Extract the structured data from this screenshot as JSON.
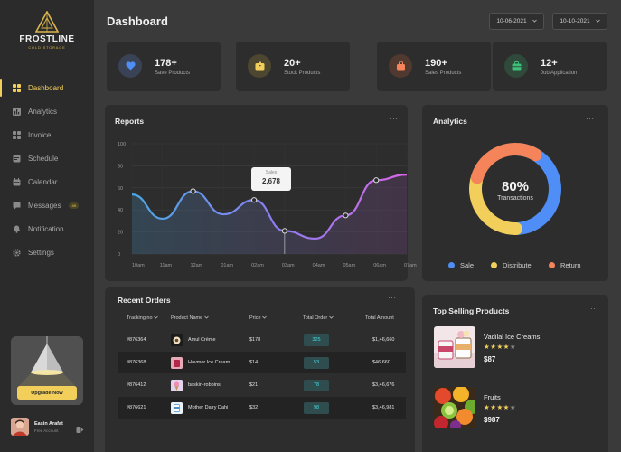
{
  "brand": {
    "name": "FROSTLINE",
    "tagline": "COLD STORAGE",
    "accent": "#f2cf5b"
  },
  "nav": [
    {
      "label": "Dashboard",
      "icon": "dashboard-icon",
      "active": true
    },
    {
      "label": "Analytics",
      "icon": "analytics-icon"
    },
    {
      "label": "Invoice",
      "icon": "invoice-icon"
    },
    {
      "label": "Schedule",
      "icon": "schedule-icon"
    },
    {
      "label": "Calendar",
      "icon": "calendar-icon"
    },
    {
      "label": "Messages",
      "icon": "messages-icon",
      "badge": "49"
    },
    {
      "label": "Notification",
      "icon": "notification-icon"
    },
    {
      "label": "Settings",
      "icon": "settings-icon"
    }
  ],
  "upgrade": {
    "label": "Upgrade Now"
  },
  "user": {
    "name": "Easin Arafat",
    "role": "Free Account"
  },
  "header": {
    "title": "Dashboard",
    "date_from": "10-06-2021",
    "date_to": "10-10-2021"
  },
  "stats": [
    {
      "value": "178+",
      "label": "Save Products",
      "icon": "heart-icon",
      "color": "#4f8ef7"
    },
    {
      "value": "20+",
      "label": "Stock Products",
      "icon": "box-icon",
      "color": "#f2cf5b"
    },
    {
      "value": "190+",
      "label": "Sales Products",
      "icon": "bag-icon",
      "color": "#f5845a"
    },
    {
      "value": "12+",
      "label": "Job Application",
      "icon": "briefcase-icon",
      "color": "#3fbf7a"
    }
  ],
  "reports": {
    "title": "Reports",
    "tooltip": {
      "label": "Sales",
      "value": "2,678"
    }
  },
  "chart_data": {
    "type": "line",
    "title": "Reports",
    "categories": [
      "10am",
      "11am",
      "12am",
      "01am",
      "02am",
      "03am",
      "04am",
      "05am",
      "06am",
      "07am"
    ],
    "yticks": [
      "100",
      "80",
      "60",
      "40",
      "20",
      "0"
    ],
    "ylim": [
      0,
      100
    ],
    "series": [
      {
        "values": [
          54,
          32,
          57,
          36,
          49,
          21,
          14,
          35,
          67,
          72
        ]
      }
    ],
    "highlight": {
      "category": "03am",
      "label": "Sales",
      "value": "2,678"
    },
    "grid": true
  },
  "analytics": {
    "title": "Analytics",
    "center_value": "80%",
    "center_label": "Transactions",
    "segments": [
      {
        "name": "Sale",
        "value": 40,
        "color": "#4f8ef7"
      },
      {
        "name": "Distribute",
        "value": 25,
        "color": "#f2cf5b"
      },
      {
        "name": "Return",
        "value": 25,
        "color": "#f5845a"
      }
    ]
  },
  "orders": {
    "title": "Recent Orders",
    "columns": [
      "Tracking no",
      "Product Name",
      "Price",
      "Total Order",
      "Total Amount"
    ],
    "rows": [
      {
        "tracking": "#876364",
        "product": "Amul Crème",
        "price": "$178",
        "qty": "325",
        "amount": "$1,46,660"
      },
      {
        "tracking": "#876368",
        "product": "Havmor Ice Cream",
        "price": "$14",
        "qty": "53",
        "amount": "$46,660"
      },
      {
        "tracking": "#876412",
        "product": "baskin-robbins",
        "price": "$21",
        "qty": "78",
        "amount": "$3,46,676"
      },
      {
        "tracking": "#876621",
        "product": "Mother Dairy Dahi",
        "price": "$32",
        "qty": "98",
        "amount": "$3,46,981"
      }
    ]
  },
  "top_selling": {
    "title": "Top Selling Products",
    "items": [
      {
        "name": "Vadilal Ice Creams",
        "rating": 4,
        "price": "$87"
      },
      {
        "name": "Fruits",
        "rating": 4,
        "price": "$987"
      }
    ]
  }
}
